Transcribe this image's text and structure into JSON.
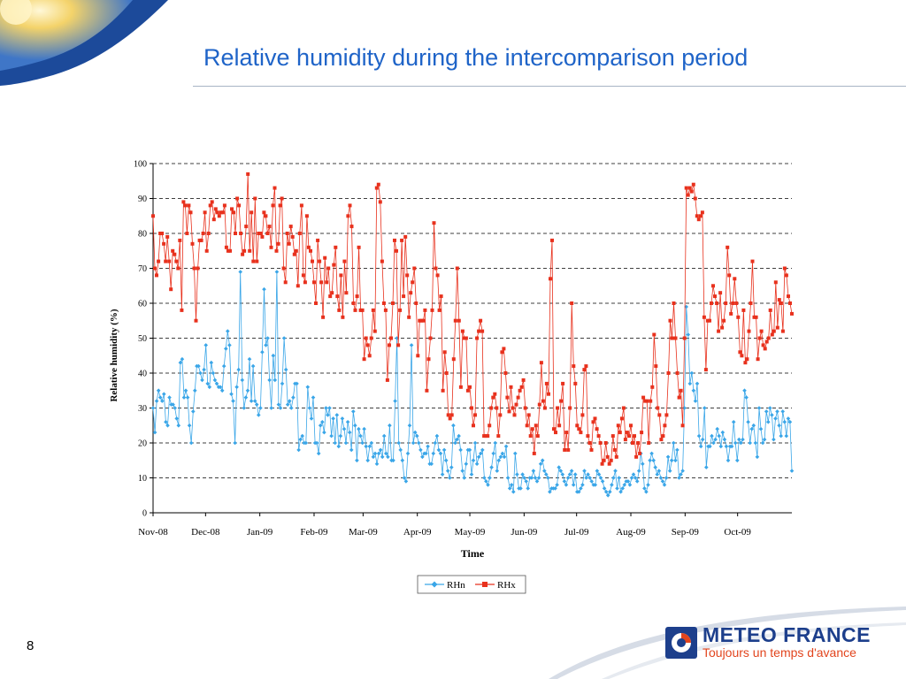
{
  "slide": {
    "title": "Relative humidity during the intercomparison period",
    "page_number": "8"
  },
  "brand": {
    "name": "METEO FRANCE",
    "tagline": "Toujours un temps d'avance",
    "colors": {
      "title": "#1f64c8",
      "logo_blue": "#1d3f8c",
      "logo_orange": "#e2451e"
    }
  },
  "chart_data": {
    "type": "line",
    "title": "",
    "xlabel": "Time",
    "ylabel": "Relative humidity (%)",
    "ylim": [
      0,
      100
    ],
    "yticks": [
      0,
      10,
      20,
      30,
      40,
      50,
      60,
      70,
      80,
      90,
      100
    ],
    "x_tick_labels": [
      "Nov-08",
      "Dec-08",
      "Jan-09",
      "Feb-09",
      "Mar-09",
      "Apr-09",
      "May-09",
      "Jun-09",
      "Jul-09",
      "Aug-09",
      "Sep-09",
      "Oct-09"
    ],
    "x_tick_days": [
      0,
      30,
      61,
      92,
      120,
      151,
      181,
      212,
      242,
      273,
      304,
      334
    ],
    "x_range_days": [
      0,
      365
    ],
    "grid": "horizontal dashed",
    "legend_position": "bottom-center",
    "series": [
      {
        "name": "RHn",
        "color": "#3aa6e8",
        "marker": "diamond",
        "values": [
          30,
          23,
          32,
          35,
          33,
          32,
          34,
          26,
          25,
          33,
          31,
          31,
          30,
          27,
          25,
          43,
          44,
          33,
          35,
          33,
          25,
          20,
          29,
          35,
          42,
          42,
          40,
          38,
          41,
          48,
          37,
          36,
          43,
          40,
          38,
          37,
          36,
          36,
          35,
          42,
          47,
          52,
          48,
          34,
          32,
          20,
          36,
          41,
          69,
          38,
          30,
          33,
          35,
          44,
          32,
          42,
          32,
          31,
          28,
          30,
          46,
          64,
          48,
          50,
          38,
          30,
          45,
          38,
          69,
          31,
          30,
          37,
          50,
          41,
          31,
          32,
          30,
          33,
          37,
          37,
          18,
          21,
          22,
          20,
          20,
          36,
          30,
          27,
          33,
          20,
          20,
          17,
          25,
          26,
          23,
          30,
          28,
          30,
          22,
          27,
          20,
          28,
          19,
          22,
          27,
          24,
          20,
          26,
          23,
          18,
          29,
          25,
          15,
          24,
          22,
          20,
          24,
          19,
          15,
          19,
          20,
          16,
          17,
          14,
          17,
          18,
          16,
          22,
          17,
          16,
          25,
          15,
          15,
          32,
          50,
          20,
          18,
          15,
          10,
          9,
          17,
          25,
          48,
          20,
          23,
          22,
          20,
          18,
          16,
          17,
          17,
          19,
          14,
          14,
          17,
          20,
          22,
          18,
          17,
          11,
          18,
          15,
          12,
          10,
          13,
          25,
          20,
          21,
          22,
          18,
          12,
          10,
          14,
          18,
          18,
          11,
          15,
          20,
          14,
          16,
          17,
          18,
          10,
          9,
          8,
          10,
          13,
          17,
          20,
          12,
          15,
          16,
          17,
          16,
          19,
          10,
          7,
          8,
          6,
          17,
          11,
          7,
          7,
          11,
          10,
          9,
          7,
          10,
          10,
          12,
          10,
          9,
          10,
          14,
          15,
          12,
          11,
          10,
          6,
          7,
          7,
          7,
          8,
          13,
          12,
          11,
          9,
          8,
          10,
          11,
          12,
          8,
          11,
          6,
          6,
          7,
          8,
          12,
          10,
          11,
          10,
          9,
          8,
          8,
          12,
          11,
          10,
          9,
          7,
          6,
          5,
          6,
          8,
          10,
          12,
          7,
          10,
          6,
          7,
          8,
          9,
          9,
          8,
          10,
          11,
          10,
          9,
          12,
          17,
          14,
          7,
          6,
          8,
          15,
          17,
          15,
          13,
          11,
          12,
          10,
          9,
          8,
          10,
          16,
          12,
          15,
          20,
          15,
          18,
          10,
          11,
          12,
          30,
          59,
          51,
          37,
          40,
          35,
          32,
          37,
          22,
          19,
          21,
          30,
          13,
          19,
          19,
          22,
          20,
          21,
          24,
          22,
          19,
          23,
          21,
          19,
          15,
          19,
          19,
          26,
          20,
          15,
          21,
          20,
          21,
          35,
          33,
          26,
          20,
          24,
          25,
          20,
          16,
          30,
          24,
          20,
          21,
          29,
          26,
          30,
          28,
          21,
          27,
          29,
          25,
          22,
          29,
          26,
          22,
          27,
          26,
          12
        ]
      },
      {
        "name": "RHx",
        "color": "#e8311d",
        "marker": "square",
        "values": [
          85,
          70,
          68,
          72,
          80,
          80,
          77,
          72,
          79,
          72,
          64,
          75,
          74,
          72,
          70,
          78,
          58,
          89,
          88,
          80,
          88,
          86,
          77,
          70,
          55,
          70,
          78,
          78,
          80,
          86,
          75,
          80,
          88,
          89,
          84,
          87,
          86,
          85,
          86,
          86,
          88,
          76,
          75,
          75,
          87,
          86,
          80,
          90,
          88,
          80,
          74,
          75,
          82,
          97,
          75,
          86,
          72,
          90,
          72,
          80,
          80,
          79,
          86,
          85,
          80,
          82,
          76,
          88,
          93,
          75,
          77,
          88,
          90,
          70,
          66,
          80,
          77,
          82,
          79,
          74,
          75,
          65,
          80,
          88,
          68,
          66,
          85,
          76,
          75,
          72,
          66,
          60,
          78,
          72,
          66,
          56,
          73,
          66,
          70,
          62,
          63,
          71,
          76,
          62,
          58,
          68,
          56,
          72,
          63,
          85,
          88,
          82,
          60,
          58,
          62,
          76,
          58,
          58,
          44,
          50,
          48,
          45,
          50,
          58,
          52,
          93,
          94,
          89,
          72,
          60,
          58,
          38,
          48,
          50,
          60,
          78,
          75,
          48,
          58,
          78,
          62,
          79,
          68,
          56,
          63,
          66,
          70,
          60,
          45,
          55,
          55,
          55,
          58,
          35,
          44,
          50,
          58,
          83,
          70,
          68,
          58,
          62,
          35,
          46,
          40,
          28,
          27,
          28,
          44,
          55,
          70,
          55,
          36,
          52,
          50,
          50,
          35,
          36,
          30,
          25,
          28,
          50,
          52,
          55,
          52,
          22,
          22,
          22,
          25,
          30,
          33,
          34,
          30,
          22,
          28,
          46,
          47,
          40,
          33,
          29,
          36,
          30,
          28,
          31,
          33,
          35,
          36,
          38,
          30,
          25,
          28,
          22,
          24,
          17,
          25,
          22,
          31,
          43,
          32,
          30,
          37,
          34,
          67,
          78,
          24,
          23,
          30,
          25,
          32,
          37,
          18,
          23,
          18,
          30,
          60,
          42,
          37,
          25,
          24,
          23,
          28,
          41,
          42,
          22,
          20,
          18,
          26,
          27,
          24,
          22,
          20,
          14,
          15,
          20,
          16,
          14,
          15,
          22,
          18,
          16,
          25,
          23,
          27,
          30,
          21,
          23,
          22,
          25,
          20,
          22,
          16,
          20,
          17,
          23,
          33,
          32,
          32,
          20,
          32,
          36,
          51,
          42,
          30,
          28,
          21,
          22,
          25,
          28,
          40,
          55,
          50,
          60,
          50,
          40,
          33,
          35,
          25,
          50,
          93,
          91,
          93,
          92,
          94,
          90,
          85,
          84,
          85,
          86,
          56,
          41,
          55,
          55,
          60,
          65,
          62,
          60,
          52,
          63,
          53,
          55,
          60,
          76,
          68,
          57,
          60,
          67,
          60,
          56,
          46,
          45,
          58,
          43,
          44,
          52,
          60,
          72,
          56,
          56,
          44,
          50,
          52,
          48,
          47,
          49,
          50,
          58,
          51,
          52,
          66,
          53,
          61,
          60,
          52,
          70,
          68,
          62,
          60,
          57
        ]
      }
    ]
  }
}
